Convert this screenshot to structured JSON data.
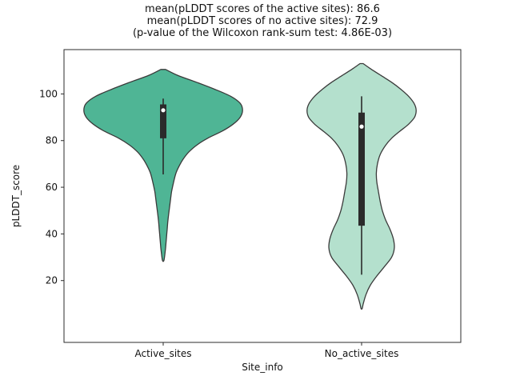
{
  "title_lines": [
    "mean(pLDDT scores of the active sites): 86.6",
    "mean(pLDDT scores of no active sites): 72.9",
    "(p-value of the Wilcoxon rank-sum test: 4.86E-03)"
  ],
  "chart_data": {
    "type": "violin",
    "title": "mean(pLDDT scores of the active sites): 86.6 / mean(pLDDT scores of no active sites): 72.9 / (p-value of the Wilcoxon rank-sum test: 4.86E-03)",
    "xlabel": "Site_info",
    "ylabel": "pLDDT_score",
    "categories": [
      "Active_sites",
      "No_active_sites"
    ],
    "y_ticks": [
      20,
      40,
      60,
      80,
      100
    ],
    "ylim": [
      -6.5,
      119
    ],
    "p_value": "4.86E-03",
    "series": [
      {
        "name": "Active_sites",
        "fill_color": "#4fb595",
        "edge_color": "#3a3a3a",
        "halfwidth_frac": 0.8,
        "stats": {
          "mean": 86.6,
          "whisker_low": 65.5,
          "q1": 81,
          "median": 93,
          "q3": 95.5,
          "whisker_high": 98
        },
        "density": [
          [
            110.5,
            0.03
          ],
          [
            108,
            0.18
          ],
          [
            105,
            0.42
          ],
          [
            102,
            0.65
          ],
          [
            99,
            0.85
          ],
          [
            96,
            0.97
          ],
          [
            93,
            1.0
          ],
          [
            90,
            0.97
          ],
          [
            87,
            0.88
          ],
          [
            84,
            0.74
          ],
          [
            81,
            0.56
          ],
          [
            78,
            0.42
          ],
          [
            75,
            0.32
          ],
          [
            72,
            0.25
          ],
          [
            69,
            0.2
          ],
          [
            66,
            0.16
          ],
          [
            62,
            0.13
          ],
          [
            58,
            0.105
          ],
          [
            54,
            0.09
          ],
          [
            50,
            0.075
          ],
          [
            46,
            0.06
          ],
          [
            42,
            0.05
          ],
          [
            38,
            0.04
          ],
          [
            34,
            0.03
          ],
          [
            31,
            0.02
          ],
          [
            28.5,
            0.008
          ]
        ]
      },
      {
        "name": "No_active_sites",
        "fill_color": "#b4e0cd",
        "edge_color": "#3a3a3a",
        "halfwidth_frac": 0.55,
        "stats": {
          "mean": 72.9,
          "whisker_low": 22.5,
          "q1": 43.5,
          "median": 86,
          "q3": 92,
          "whisker_high": 99
        },
        "density": [
          [
            113,
            0.03
          ],
          [
            111,
            0.15
          ],
          [
            108,
            0.35
          ],
          [
            105,
            0.55
          ],
          [
            102,
            0.72
          ],
          [
            99,
            0.86
          ],
          [
            96,
            0.96
          ],
          [
            93,
            1.0
          ],
          [
            90,
            0.97
          ],
          [
            87,
            0.86
          ],
          [
            84,
            0.7
          ],
          [
            81,
            0.55
          ],
          [
            78,
            0.44
          ],
          [
            74,
            0.34
          ],
          [
            70,
            0.29
          ],
          [
            66,
            0.27
          ],
          [
            62,
            0.28
          ],
          [
            58,
            0.31
          ],
          [
            54,
            0.34
          ],
          [
            50,
            0.38
          ],
          [
            46,
            0.44
          ],
          [
            42,
            0.52
          ],
          [
            38,
            0.58
          ],
          [
            34,
            0.6
          ],
          [
            30,
            0.55
          ],
          [
            26,
            0.42
          ],
          [
            22,
            0.28
          ],
          [
            18,
            0.16
          ],
          [
            14,
            0.08
          ],
          [
            10,
            0.03
          ],
          [
            8,
            0.01
          ]
        ]
      }
    ]
  }
}
